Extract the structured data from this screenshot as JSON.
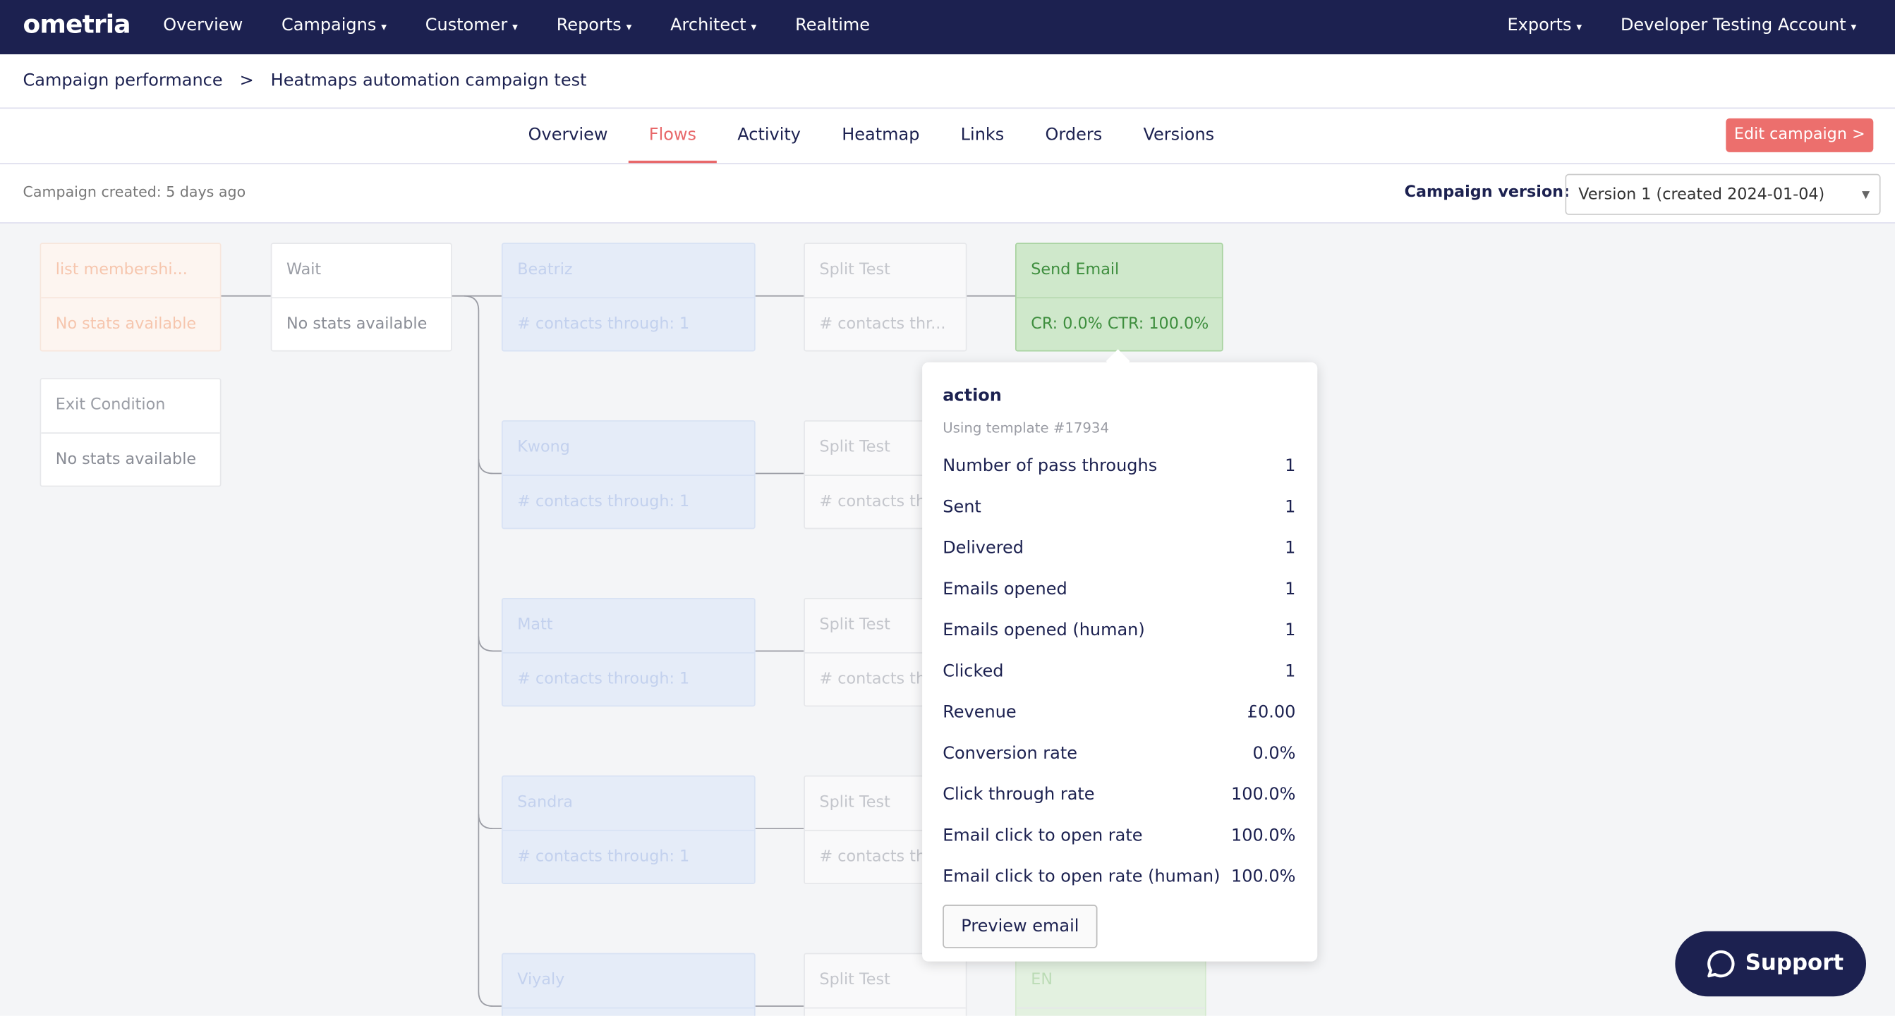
{
  "nav": {
    "logo": "ometria",
    "items": [
      "Overview",
      "Campaigns",
      "Customer",
      "Reports",
      "Architect",
      "Realtime"
    ],
    "dropdown": [
      false,
      true,
      true,
      true,
      true,
      false
    ],
    "right": [
      "Exports",
      "Developer Testing Account"
    ]
  },
  "breadcrumb": {
    "items": [
      "Campaign performance",
      "Heatmaps automation campaign test"
    ],
    "separator": ">"
  },
  "tabs": {
    "items": [
      "Overview",
      "Flows",
      "Activity",
      "Heatmap",
      "Links",
      "Orders",
      "Versions"
    ],
    "active": 1
  },
  "edit_button": "Edit campaign >",
  "created": "Campaign created: 5 days ago",
  "version": {
    "label": "Campaign version:",
    "selected": "Version 1 (created 2024-01-04)"
  },
  "nodes": [
    {
      "title": "list membershi...",
      "stat": "No stats available",
      "kind": "trigger"
    },
    {
      "title": "Exit Condition",
      "stat": "No stats available",
      "kind": "neutral"
    },
    {
      "title": "Wait",
      "stat": "No stats available",
      "kind": "neutral"
    },
    {
      "title": "Beatriz",
      "stat": "# contacts through: 1",
      "kind": "branch"
    },
    {
      "title": "Kwong",
      "stat": "# contacts through: 1",
      "kind": "branch"
    },
    {
      "title": "Matt",
      "stat": "# contacts through: 1",
      "kind": "branch"
    },
    {
      "title": "Sandra",
      "stat": "# contacts through: 1",
      "kind": "branch"
    },
    {
      "title": "Viyaly",
      "stat": "",
      "kind": "branch"
    },
    {
      "title": "Split Test",
      "stat": "# contacts thr...",
      "kind": "faded"
    },
    {
      "title": "Split Test",
      "stat": "# contacts th",
      "kind": "faded"
    },
    {
      "title": "Split Test",
      "stat": "# contacts th",
      "kind": "faded"
    },
    {
      "title": "Split Test",
      "stat": "# contacts th",
      "kind": "faded"
    },
    {
      "title": "Split Test",
      "stat": "",
      "kind": "faded"
    },
    {
      "title": "Send Email",
      "stat": "CR: 0.0% CTR: 100.0%",
      "kind": "email"
    },
    {
      "title": "EN",
      "stat": "",
      "kind": "email-faded"
    }
  ],
  "popup": {
    "title": "action",
    "subtitle": "Using template #17934",
    "rows": [
      [
        "Number of pass throughs",
        1
      ],
      [
        "Sent",
        1
      ],
      [
        "Delivered",
        1
      ],
      [
        "Emails opened",
        1
      ],
      [
        "Emails opened (human)",
        1
      ],
      [
        "Clicked",
        1
      ],
      [
        "Revenue",
        "£0.00"
      ],
      [
        "Conversion rate",
        "0.0%"
      ],
      [
        "Click through rate",
        "100.0%"
      ],
      [
        "Email click to open rate",
        "100.0%"
      ],
      [
        "Email click to open rate (human)",
        "100.0%"
      ]
    ],
    "button": "Preview email"
  },
  "support": "Support"
}
